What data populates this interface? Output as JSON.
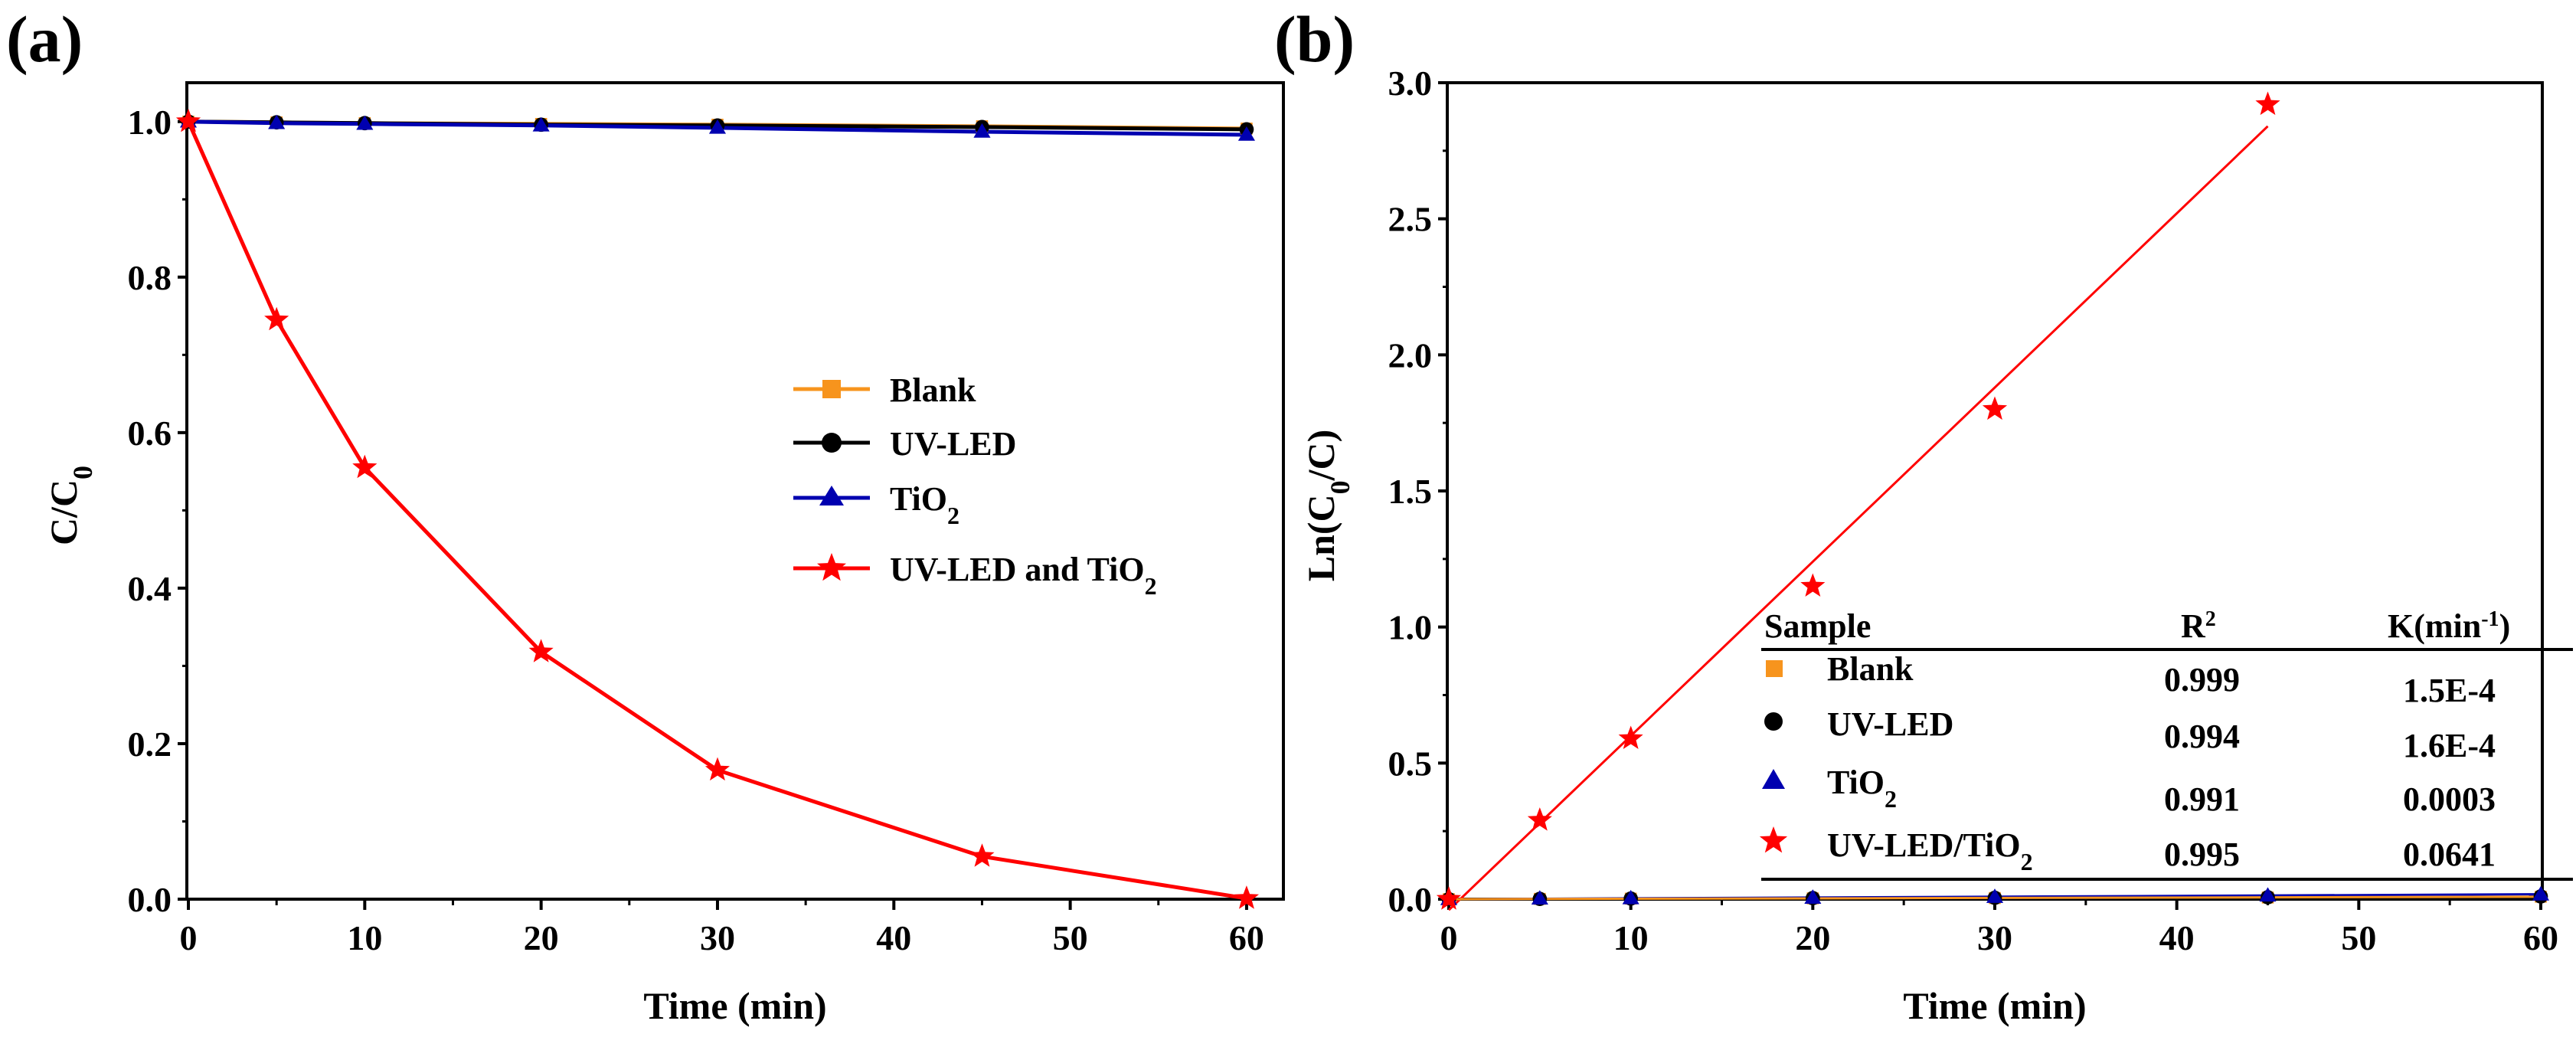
{
  "chart_data": [
    {
      "panel": "(a)",
      "type": "line",
      "xlabel": "Time (min)",
      "ylabel": {
        "base": "C/C",
        "sub": "0"
      },
      "xlim": [
        0,
        62
      ],
      "ylim": [
        0,
        1.05
      ],
      "xticks": [
        "0",
        "10",
        "20",
        "30",
        "40",
        "50",
        "60"
      ],
      "yticks": [
        "0.0",
        "0.2",
        "0.4",
        "0.6",
        "0.8",
        "1.0"
      ],
      "legend_position": "center-right",
      "series": [
        {
          "name": "Blank",
          "name_sub": "",
          "color": "#f7941d",
          "marker": "square",
          "x": [
            0,
            5,
            10,
            20,
            30,
            45,
            60
          ],
          "y": [
            1.0,
            0.999,
            0.998,
            0.997,
            0.996,
            0.994,
            0.991
          ]
        },
        {
          "name": "UV-LED",
          "name_sub": "",
          "color": "#000000",
          "marker": "circle",
          "x": [
            0,
            5,
            10,
            20,
            30,
            45,
            60
          ],
          "y": [
            1.0,
            0.999,
            0.998,
            0.996,
            0.995,
            0.993,
            0.99
          ]
        },
        {
          "name": "TiO",
          "name_sub": "2",
          "color": "#0000b0",
          "marker": "triangle",
          "x": [
            0,
            5,
            10,
            20,
            30,
            45,
            60
          ],
          "y": [
            1.0,
            0.998,
            0.997,
            0.995,
            0.992,
            0.987,
            0.983
          ]
        },
        {
          "name": "UV-LED and TiO",
          "name_sub": "2",
          "color": "#ff0000",
          "marker": "star",
          "x": [
            0,
            5,
            10,
            20,
            30,
            45,
            60
          ],
          "y": [
            1.0,
            0.745,
            0.555,
            0.318,
            0.166,
            0.055,
            0.001
          ]
        }
      ]
    },
    {
      "panel": "(b)",
      "type": "scatter",
      "xlabel": "Time (min)",
      "ylabel": {
        "base": "Ln(C",
        "sub": "0",
        "tail": "/C)"
      },
      "xlim": [
        0,
        60
      ],
      "ylim": [
        0,
        3.0
      ],
      "xticks": [
        "0",
        "10",
        "20",
        "30",
        "40",
        "50",
        "60"
      ],
      "yticks": [
        "0.0",
        "0.5",
        "1.0",
        "1.5",
        "2.0",
        "2.5",
        "3.0"
      ],
      "series": [
        {
          "name": "Blank",
          "color": "#f7941d",
          "marker": "square",
          "x": [
            0,
            5,
            10,
            20,
            30,
            45,
            60
          ],
          "y": [
            0,
            0.001,
            0.002,
            0.003,
            0.004,
            0.006,
            0.009
          ]
        },
        {
          "name": "UV-LED",
          "color": "#000000",
          "marker": "circle",
          "x": [
            0,
            5,
            10,
            20,
            30,
            45,
            60
          ],
          "y": [
            0,
            0.001,
            0.002,
            0.004,
            0.005,
            0.007,
            0.01
          ]
        },
        {
          "name": "TiO2",
          "color": "#0000b0",
          "marker": "triangle",
          "x": [
            0,
            5,
            10,
            20,
            30,
            45,
            60
          ],
          "y": [
            0,
            0.002,
            0.003,
            0.005,
            0.008,
            0.013,
            0.017
          ]
        },
        {
          "name": "UV-LED/TiO2",
          "color": "#ff0000",
          "marker": "star",
          "x": [
            0,
            5,
            10,
            20,
            30,
            45
          ],
          "y": [
            0,
            0.29,
            0.59,
            1.15,
            1.8,
            2.92
          ]
        }
      ],
      "fit_lines": [
        {
          "color": "#ff0000",
          "x": [
            0,
            45
          ],
          "y": [
            -0.04,
            2.84
          ]
        },
        {
          "color": "#0000b0",
          "x": [
            0,
            60
          ],
          "y": [
            0,
            0.018
          ]
        },
        {
          "color": "#f7941d",
          "x": [
            0,
            60
          ],
          "y": [
            0,
            0.009
          ]
        }
      ],
      "table": {
        "headers": {
          "sample": "Sample",
          "r2_base": "R",
          "r2_sup": "2",
          "k_base": "K(min",
          "k_sup": "-1",
          "k_tail": ")"
        },
        "rows": [
          {
            "marker": "square",
            "color": "#f7941d",
            "sample": "Blank",
            "sample_sub": "",
            "sample_tail": "",
            "r2": "0.999",
            "k": "1.5E-4"
          },
          {
            "marker": "circle",
            "color": "#000000",
            "sample": "UV-LED",
            "sample_sub": "",
            "sample_tail": "",
            "r2": "0.994",
            "k": "1.6E-4"
          },
          {
            "marker": "triangle",
            "color": "#0000b0",
            "sample": "TiO",
            "sample_sub": "2",
            "sample_tail": "",
            "r2": "0.991",
            "k": "0.0003"
          },
          {
            "marker": "star",
            "color": "#ff0000",
            "sample": "UV-LED/TiO",
            "sample_sub": "2",
            "sample_tail": "",
            "r2": "0.995",
            "k": "0.0641"
          }
        ]
      }
    }
  ]
}
